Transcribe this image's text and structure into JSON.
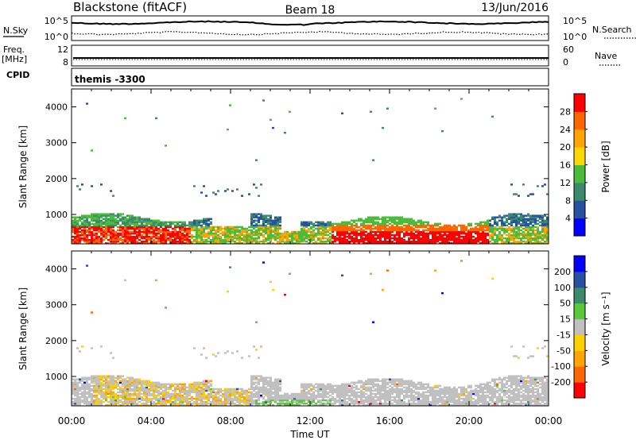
{
  "header": {
    "station": "Blackstone (fitACF)",
    "beam": "Beam 18",
    "date": "13/Jun/2016"
  },
  "aux_panels": {
    "nsky": {
      "label": "N.Sky",
      "ticks": [
        "10^5",
        "10^0"
      ],
      "right_label": "N.Search",
      "right_ticks": [
        "10^5",
        "10^0"
      ]
    },
    "freq": {
      "label_line1": "Freq.",
      "label_line2": "[MHz]",
      "ticks": [
        "12",
        "8"
      ],
      "right_label": "Nave",
      "right_ticks": [
        "60",
        "0"
      ]
    },
    "cpid": {
      "label": "CPID",
      "value": "themis -3300"
    }
  },
  "colors": {
    "power": [
      "#0000ff",
      "#2850a0",
      "#3c8a6e",
      "#4cbb3c",
      "#ffd700",
      "#ffa500",
      "#ff6600",
      "#ff0000"
    ],
    "velocity": [
      "#ff0000",
      "#ff6600",
      "#ffa500",
      "#ffd000",
      "#c0c0c0",
      "#5ac83c",
      "#3c8a6e",
      "#2850a0",
      "#0000ff"
    ]
  },
  "chart_data": [
    {
      "type": "heatmap",
      "title": "",
      "xlabel": "",
      "ylabel": "Slant Range [km]",
      "xlim": [
        0,
        24
      ],
      "ylim": [
        180,
        4500
      ],
      "x_tick_labels": [
        "00:00",
        "04:00",
        "08:00",
        "12:00",
        "16:00",
        "20:00",
        "00:00"
      ],
      "y_ticks": [
        1000,
        2000,
        3000,
        4000
      ],
      "colorbar": {
        "label": "Power [dB]",
        "ticks": [
          "4",
          "8",
          "12",
          "16",
          "20",
          "24",
          "28"
        ]
      }
    },
    {
      "type": "heatmap",
      "title": "",
      "xlabel": "Time UT",
      "ylabel": "Slant Range [km]",
      "xlim": [
        0,
        24
      ],
      "ylim": [
        180,
        4500
      ],
      "x_tick_labels": [
        "00:00",
        "04:00",
        "08:00",
        "12:00",
        "16:00",
        "20:00",
        "00:00"
      ],
      "y_ticks": [
        1000,
        2000,
        3000,
        4000
      ],
      "colorbar": {
        "label": "Velocity [m s⁻¹]",
        "ticks": [
          "200",
          "100",
          "50",
          "15",
          "-15",
          "-50",
          "-100",
          "-200"
        ]
      }
    }
  ]
}
